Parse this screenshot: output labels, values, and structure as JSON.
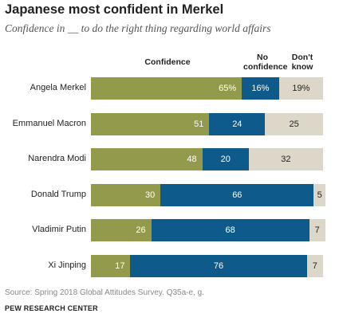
{
  "title": "Japanese most confident in Merkel",
  "subtitle": "Confidence in __ to do the right thing regarding world affairs",
  "source": "Source: Spring 2018 Global Attitudes Survey. Q35a-e, g.",
  "org": "PEW RESEARCH CENTER",
  "colors": {
    "confidence": "#949a4b",
    "no_confidence": "#0e5a8a",
    "dont_know": "#dcd7c8"
  },
  "chart_data": {
    "type": "bar",
    "orientation": "horizontal",
    "stacked": true,
    "xlim": [
      0,
      100
    ],
    "categories": [
      "Angela Merkel",
      "Emmanuel Macron",
      "Narendra Modi",
      "Donald Trump",
      "Vladimir Putin",
      "Xi Jinping"
    ],
    "series": [
      {
        "name": "Confidence",
        "values": [
          65,
          51,
          48,
          30,
          26,
          17
        ],
        "labels": [
          "65%",
          "51",
          "48",
          "30",
          "26",
          "17"
        ]
      },
      {
        "name": "No confidence",
        "values": [
          16,
          24,
          20,
          66,
          68,
          76
        ],
        "labels": [
          "16%",
          "24",
          "20",
          "66",
          "68",
          "76"
        ]
      },
      {
        "name": "Don't know",
        "values": [
          19,
          25,
          32,
          5,
          7,
          7
        ],
        "labels": [
          "19%",
          "25",
          "32",
          "5",
          "7",
          "7"
        ]
      }
    ]
  }
}
